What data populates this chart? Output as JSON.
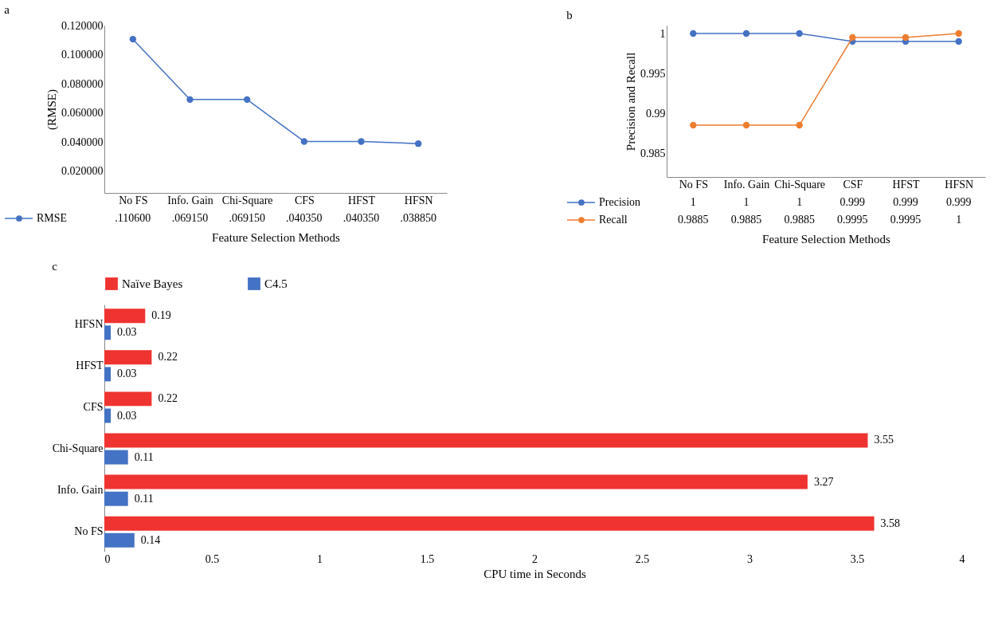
{
  "chart_data": [
    {
      "type": "line",
      "title": "a",
      "xlabel": "Feature Selection Methods",
      "ylabel": "(RMSE)",
      "categories": [
        "No FS",
        "Info. Gain",
        "Chi-Square",
        "CFS",
        "HFST",
        "HFSN"
      ],
      "series": [
        {
          "name": "RMSE",
          "color": "#4472c4",
          "values": [
            0.1106,
            0.06915,
            0.06915,
            0.04035,
            0.04035,
            0.03885
          ],
          "value_labels": [
            ".110600",
            ".069150",
            ".069150",
            ".040350",
            ".040350",
            ".038850"
          ]
        }
      ],
      "ylim": [
        0.005,
        0.12
      ],
      "yticks": [
        {
          "value": 0.02,
          "label": "0.020000"
        },
        {
          "value": 0.04,
          "label": "0.040000"
        },
        {
          "value": 0.06,
          "label": "0.060000"
        },
        {
          "value": 0.08,
          "label": "0.080000"
        },
        {
          "value": 0.1,
          "label": "0.100000"
        },
        {
          "value": 0.12,
          "label": "0.120000"
        }
      ],
      "marker": "circle",
      "line_style": "solid",
      "legend": "bottom"
    },
    {
      "type": "line",
      "title": "b",
      "xlabel": "Feature Selection Methods",
      "ylabel": "Precision and Recall",
      "categories": [
        "No FS",
        "Info. Gain",
        "Chi-Square",
        "CSF",
        "HFST",
        "HFSN"
      ],
      "series": [
        {
          "name": "Precision",
          "color": "#4472c4",
          "values": [
            1,
            1,
            1,
            0.999,
            0.999,
            0.999
          ]
        },
        {
          "name": "Recall",
          "color": "#ed7d31",
          "values": [
            0.9885,
            0.9885,
            0.9885,
            0.9995,
            0.9995,
            1
          ]
        }
      ],
      "ylim": [
        0.982,
        1.001
      ],
      "yticks": [
        0.985,
        0.99,
        0.995,
        1
      ],
      "data_labels": true,
      "marker": "circle",
      "line_style": "solid",
      "legend": "bottom"
    },
    {
      "type": "bar",
      "title": "c",
      "orientation": "horizontal",
      "xlabel": "CPU time in Seconds",
      "categories": [
        "HFSN",
        "HFST",
        "CFS",
        "Chi-Square",
        "Info. Gain",
        "No FS"
      ],
      "series": [
        {
          "name": "Naïve Bayes",
          "color": "#ef3330",
          "values": [
            0.19,
            0.22,
            0.22,
            3.55,
            3.27,
            3.58
          ]
        },
        {
          "name": "C4.5",
          "color": "#4472c4",
          "values": [
            0.03,
            0.03,
            0.03,
            0.11,
            0.11,
            0.14
          ]
        }
      ],
      "xlim": [
        0,
        4
      ],
      "xticks": [
        0,
        0.5,
        1,
        1.5,
        2,
        2.5,
        3,
        3.5,
        4
      ],
      "data_labels": true,
      "legend": "top"
    }
  ]
}
